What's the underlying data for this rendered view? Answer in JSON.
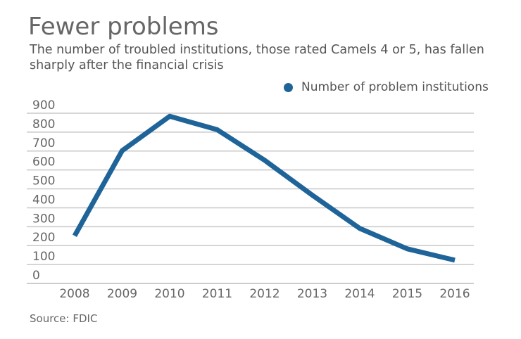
{
  "chart_data": {
    "type": "line",
    "title": "Fewer problems",
    "subtitle": "The number of troubled institutions, those rated Camels 4 or 5, has fallen sharply after the financial crisis",
    "source": "Source: FDIC",
    "categories": [
      "2008",
      "2009",
      "2010",
      "2011",
      "2012",
      "2013",
      "2014",
      "2015",
      "2016"
    ],
    "series": [
      {
        "name": "Number of problem institutions",
        "values": [
          252,
          702,
          884,
          813,
          651,
          467,
          291,
          183,
          123
        ],
        "color": "#1f6499"
      }
    ],
    "yticks": [
      0,
      100,
      200,
      300,
      400,
      500,
      600,
      700,
      800,
      900
    ],
    "ylim": [
      0,
      900
    ],
    "grid": true,
    "legend_position": "top-right",
    "xlabel": "",
    "ylabel": ""
  }
}
